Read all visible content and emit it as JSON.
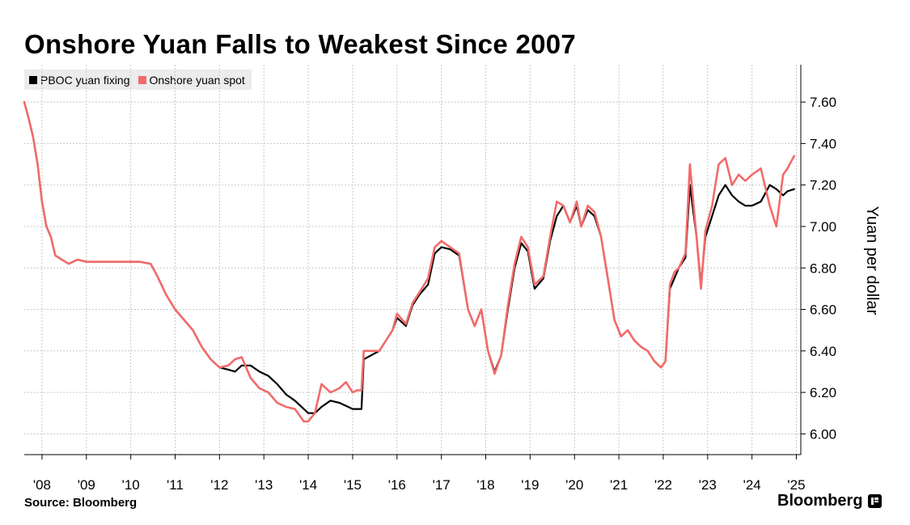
{
  "title": "Onshore Yuan Falls to Weakest Since 2007",
  "source": "Source: Bloomberg",
  "brand": "Bloomberg",
  "brand_icon": "bloomberg-terminal-icon",
  "colors": {
    "fixing": "#000000",
    "spot": "#f26b6b",
    "grid": "#c8c8c8",
    "axis": "#000000"
  },
  "chart_data": {
    "type": "line",
    "title": "Onshore Yuan Falls to Weakest Since 2007",
    "ylabel": "Yuan per dollar",
    "xlabel": "",
    "ylim": [
      5.9,
      7.78
    ],
    "xlim": [
      2007.6,
      2025.1
    ],
    "yticks": [
      6.0,
      6.2,
      6.4,
      6.6,
      6.8,
      7.0,
      7.2,
      7.4,
      7.6
    ],
    "ytick_labels": [
      "6.00",
      "6.20",
      "6.40",
      "6.60",
      "6.80",
      "7.00",
      "7.20",
      "7.40",
      "7.60"
    ],
    "xticks": [
      2008.0,
      2009.0,
      2010.0,
      2011.0,
      2012.0,
      2013.0,
      2014.0,
      2015.0,
      2016.0,
      2017.0,
      2018.0,
      2019.0,
      2020.0,
      2021.0,
      2022.0,
      2023.0,
      2024.0,
      2025.0
    ],
    "xtick_labels": [
      "'08",
      "'09",
      "'10",
      "'11",
      "'12",
      "'13",
      "'14",
      "'15",
      "'16",
      "'17",
      "'18",
      "'19",
      "'20",
      "'21",
      "'22",
      "'23",
      "'24",
      "'25"
    ],
    "grid": true,
    "legend_position": "top-left",
    "series": [
      {
        "name": "PBOC yuan fixing",
        "x": [
          2007.6,
          2007.7,
          2007.8,
          2007.9,
          2008.0,
          2008.1,
          2008.2,
          2008.3,
          2008.45,
          2008.6,
          2008.8,
          2009.0,
          2009.5,
          2010.0,
          2010.2,
          2010.45,
          2010.6,
          2010.8,
          2011.0,
          2011.2,
          2011.4,
          2011.6,
          2011.8,
          2012.0,
          2012.2,
          2012.35,
          2012.5,
          2012.7,
          2012.9,
          2013.1,
          2013.3,
          2013.5,
          2013.7,
          2013.9,
          2014.0,
          2014.15,
          2014.3,
          2014.5,
          2014.7,
          2014.9,
          2015.0,
          2015.1,
          2015.2,
          2015.25,
          2015.6,
          2015.9,
          2016.0,
          2016.2,
          2016.35,
          2016.5,
          2016.7,
          2016.85,
          2017.0,
          2017.2,
          2017.4,
          2017.6,
          2017.75,
          2017.9,
          2018.05,
          2018.2,
          2018.35,
          2018.5,
          2018.65,
          2018.8,
          2018.95,
          2019.1,
          2019.3,
          2019.45,
          2019.6,
          2019.75,
          2019.9,
          2020.05,
          2020.15,
          2020.3,
          2020.45,
          2020.6,
          2020.75,
          2020.9,
          2021.05,
          2021.2,
          2021.35,
          2021.5,
          2021.65,
          2021.8,
          2021.95,
          2022.05,
          2022.15,
          2022.25,
          2022.35,
          2022.5,
          2022.6,
          2022.75,
          2022.85,
          2022.95,
          2023.1,
          2023.25,
          2023.4,
          2023.55,
          2023.7,
          2023.85,
          2024.0,
          2024.2,
          2024.4,
          2024.55,
          2024.7,
          2024.8,
          2024.95
        ],
        "y": [
          7.6,
          7.52,
          7.43,
          7.3,
          7.12,
          7.0,
          6.95,
          6.86,
          6.84,
          6.82,
          6.84,
          6.83,
          6.83,
          6.83,
          6.83,
          6.82,
          6.76,
          6.67,
          6.6,
          6.55,
          6.5,
          6.42,
          6.36,
          6.32,
          6.31,
          6.3,
          6.33,
          6.33,
          6.3,
          6.28,
          6.24,
          6.19,
          6.16,
          6.12,
          6.1,
          6.1,
          6.13,
          6.16,
          6.15,
          6.13,
          6.12,
          6.12,
          6.12,
          6.36,
          6.4,
          6.5,
          6.56,
          6.52,
          6.62,
          6.67,
          6.72,
          6.87,
          6.9,
          6.89,
          6.86,
          6.6,
          6.52,
          6.6,
          6.4,
          6.3,
          6.38,
          6.6,
          6.8,
          6.92,
          6.88,
          6.7,
          6.75,
          6.93,
          7.05,
          7.1,
          7.02,
          7.1,
          7.0,
          7.08,
          7.05,
          6.95,
          6.75,
          6.55,
          6.47,
          6.5,
          6.45,
          6.42,
          6.4,
          6.35,
          6.32,
          6.35,
          6.7,
          6.75,
          6.8,
          6.85,
          7.2,
          6.95,
          6.72,
          6.95,
          7.05,
          7.15,
          7.2,
          7.15,
          7.12,
          7.1,
          7.1,
          7.12,
          7.2,
          7.18,
          7.15,
          7.17,
          7.18
        ]
      },
      {
        "name": "Onshore yuan spot",
        "x": [
          2007.6,
          2007.7,
          2007.8,
          2007.9,
          2008.0,
          2008.1,
          2008.2,
          2008.3,
          2008.45,
          2008.6,
          2008.8,
          2009.0,
          2009.5,
          2010.0,
          2010.2,
          2010.45,
          2010.6,
          2010.8,
          2011.0,
          2011.2,
          2011.4,
          2011.6,
          2011.8,
          2012.0,
          2012.2,
          2012.35,
          2012.5,
          2012.7,
          2012.9,
          2013.1,
          2013.3,
          2013.5,
          2013.7,
          2013.9,
          2014.0,
          2014.15,
          2014.3,
          2014.5,
          2014.7,
          2014.85,
          2015.0,
          2015.1,
          2015.2,
          2015.25,
          2015.6,
          2015.9,
          2016.0,
          2016.2,
          2016.35,
          2016.5,
          2016.7,
          2016.85,
          2017.0,
          2017.2,
          2017.4,
          2017.6,
          2017.75,
          2017.9,
          2018.05,
          2018.2,
          2018.35,
          2018.5,
          2018.65,
          2018.8,
          2018.95,
          2019.1,
          2019.3,
          2019.45,
          2019.6,
          2019.75,
          2019.9,
          2020.05,
          2020.15,
          2020.3,
          2020.45,
          2020.6,
          2020.75,
          2020.9,
          2021.05,
          2021.2,
          2021.35,
          2021.5,
          2021.65,
          2021.8,
          2021.95,
          2022.05,
          2022.15,
          2022.25,
          2022.35,
          2022.5,
          2022.6,
          2022.75,
          2022.85,
          2022.95,
          2023.1,
          2023.25,
          2023.4,
          2023.55,
          2023.7,
          2023.85,
          2024.0,
          2024.2,
          2024.4,
          2024.55,
          2024.7,
          2024.8,
          2024.95
        ],
        "y": [
          7.6,
          7.52,
          7.43,
          7.3,
          7.12,
          7.0,
          6.95,
          6.86,
          6.84,
          6.82,
          6.84,
          6.83,
          6.83,
          6.83,
          6.83,
          6.82,
          6.76,
          6.67,
          6.6,
          6.55,
          6.5,
          6.42,
          6.36,
          6.32,
          6.33,
          6.36,
          6.37,
          6.27,
          6.22,
          6.2,
          6.15,
          6.13,
          6.12,
          6.06,
          6.06,
          6.1,
          6.24,
          6.2,
          6.22,
          6.25,
          6.2,
          6.21,
          6.21,
          6.4,
          6.4,
          6.5,
          6.58,
          6.53,
          6.63,
          6.68,
          6.75,
          6.9,
          6.93,
          6.9,
          6.87,
          6.6,
          6.52,
          6.6,
          6.4,
          6.29,
          6.38,
          6.62,
          6.82,
          6.95,
          6.9,
          6.72,
          6.76,
          6.95,
          7.12,
          7.1,
          7.02,
          7.12,
          7.0,
          7.1,
          7.07,
          6.95,
          6.75,
          6.55,
          6.47,
          6.5,
          6.45,
          6.42,
          6.4,
          6.35,
          6.32,
          6.35,
          6.72,
          6.78,
          6.8,
          6.87,
          7.3,
          6.95,
          6.7,
          6.98,
          7.1,
          7.3,
          7.33,
          7.2,
          7.25,
          7.22,
          7.25,
          7.28,
          7.1,
          7.0,
          7.25,
          7.28,
          7.34
        ]
      }
    ]
  }
}
